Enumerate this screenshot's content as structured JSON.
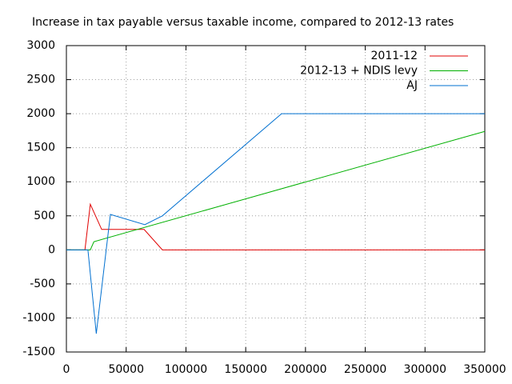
{
  "chart_data": {
    "type": "line",
    "title": "Increase in tax payable versus taxable income, compared to 2012-13 rates",
    "xlim": [
      0,
      350000
    ],
    "xticks": [
      0,
      50000,
      100000,
      150000,
      200000,
      250000,
      300000,
      350000
    ],
    "ylim": [
      -1500,
      3000
    ],
    "yticks": [
      -1500,
      -1000,
      -500,
      0,
      500,
      1000,
      1500,
      2000,
      2500,
      3000
    ],
    "grid": true,
    "legend": "top-right",
    "series": [
      {
        "name": "2011-12",
        "color": "#e00000",
        "x": [
          0,
          15500,
          20000,
          29500,
          65000,
          80300,
          350000
        ],
        "values": [
          0,
          0,
          670,
          300,
          300,
          0,
          0
        ]
      },
      {
        "name": "2012-13 + NDIS levy",
        "color": "#00b000",
        "x": [
          0,
          20000,
          23000,
          350000
        ],
        "values": [
          0,
          0,
          120,
          1740
        ]
      },
      {
        "name": "AJ",
        "color": "#0070d0",
        "x": [
          0,
          18000,
          25000,
          36800,
          65600,
          80300,
          180000,
          350000
        ],
        "values": [
          0,
          0,
          -1230,
          520,
          370,
          500,
          2000,
          2000
        ]
      }
    ]
  }
}
